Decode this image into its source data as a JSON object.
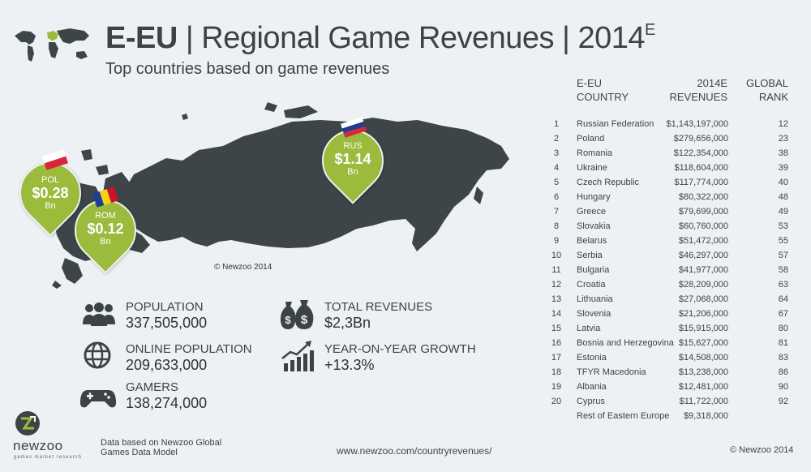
{
  "header": {
    "title_region": "E-EU",
    "title_rest": " | Regional Game Revenues | 2014",
    "title_sup": "E",
    "subtitle": "Top countries based on game revenues"
  },
  "map": {
    "copyright": "© Newzoo 2014",
    "pins": [
      {
        "code": "POL",
        "value": "$0.28",
        "unit": "Bn"
      },
      {
        "code": "ROM",
        "value": "$0.12",
        "unit": "Bn"
      },
      {
        "code": "RUS",
        "value": "$1.14",
        "unit": "Bn"
      }
    ],
    "land_color": "#3d4549",
    "pin_color": "#9bbb3c"
  },
  "stats": {
    "population": {
      "label": "POPULATION",
      "value": "337,505,000",
      "icon": "people-icon"
    },
    "online_population": {
      "label": "ONLINE POPULATION",
      "value": "209,633,000",
      "icon": "globe-icon"
    },
    "gamers": {
      "label": "GAMERS",
      "value": "138,274,000",
      "icon": "gamepad-icon"
    },
    "total_revenues": {
      "label": "TOTAL REVENUES",
      "value": "$2,3Bn",
      "icon": "money-bags-icon"
    },
    "growth": {
      "label": "YEAR-ON-YEAR GROWTH",
      "value": "+13.3%",
      "icon": "growth-chart-icon"
    }
  },
  "table": {
    "headers": {
      "country_line1": "E-EU",
      "country_line2": "COUNTRY",
      "revenue_line1": "2014E",
      "revenue_line2": "REVENUES",
      "rank_line1": "GLOBAL",
      "rank_line2": "RANK"
    },
    "rows": [
      {
        "rank": "1",
        "country": "Russian Federation",
        "revenue": "$1,143,197,000",
        "global": "12"
      },
      {
        "rank": "2",
        "country": "Poland",
        "revenue": "$279,656,000",
        "global": "23"
      },
      {
        "rank": "3",
        "country": "Romania",
        "revenue": "$122,354,000",
        "global": "38"
      },
      {
        "rank": "4",
        "country": "Ukraine",
        "revenue": "$118,604,000",
        "global": "39"
      },
      {
        "rank": "5",
        "country": "Czech Republic",
        "revenue": "$117,774,000",
        "global": "40"
      },
      {
        "rank": "6",
        "country": "Hungary",
        "revenue": "$80,322,000",
        "global": "48"
      },
      {
        "rank": "7",
        "country": "Greece",
        "revenue": "$79,699,000",
        "global": "49"
      },
      {
        "rank": "8",
        "country": "Slovakia",
        "revenue": "$60,760,000",
        "global": "53"
      },
      {
        "rank": "9",
        "country": "Belarus",
        "revenue": "$51,472,000",
        "global": "55"
      },
      {
        "rank": "10",
        "country": "Serbia",
        "revenue": "$46,297,000",
        "global": "57"
      },
      {
        "rank": "11",
        "country": "Bulgaria",
        "revenue": "$41,977,000",
        "global": "58"
      },
      {
        "rank": "12",
        "country": "Croatia",
        "revenue": "$28,209,000",
        "global": "63"
      },
      {
        "rank": "13",
        "country": "Lithuania",
        "revenue": "$27,068,000",
        "global": "64"
      },
      {
        "rank": "14",
        "country": "Slovenia",
        "revenue": "$21,206,000",
        "global": "67"
      },
      {
        "rank": "15",
        "country": "Latvia",
        "revenue": "$15,915,000",
        "global": "80"
      },
      {
        "rank": "16",
        "country": "Bosnia and Herzegovina",
        "revenue": "$15,627,000",
        "global": "81"
      },
      {
        "rank": "17",
        "country": "Estonia",
        "revenue": "$14,508,000",
        "global": "83"
      },
      {
        "rank": "18",
        "country": "TFYR Macedonia",
        "revenue": "$13,238,000",
        "global": "86"
      },
      {
        "rank": "19",
        "country": "Albania",
        "revenue": "$12,481,000",
        "global": "90"
      },
      {
        "rank": "20",
        "country": "Cyprus",
        "revenue": "$11,722,000",
        "global": "92"
      },
      {
        "rank": "",
        "country": "Rest of Eastern Europe",
        "revenue": "$9,318,000",
        "global": ""
      }
    ]
  },
  "footer": {
    "brand": "newzoo",
    "tagline": "games market research",
    "note_line1": "Data based on Newzoo Global",
    "note_line2": "Games Data Model",
    "url": "www.newzoo.com/countryrevenues/",
    "copyright": "© Newzoo 2014"
  }
}
